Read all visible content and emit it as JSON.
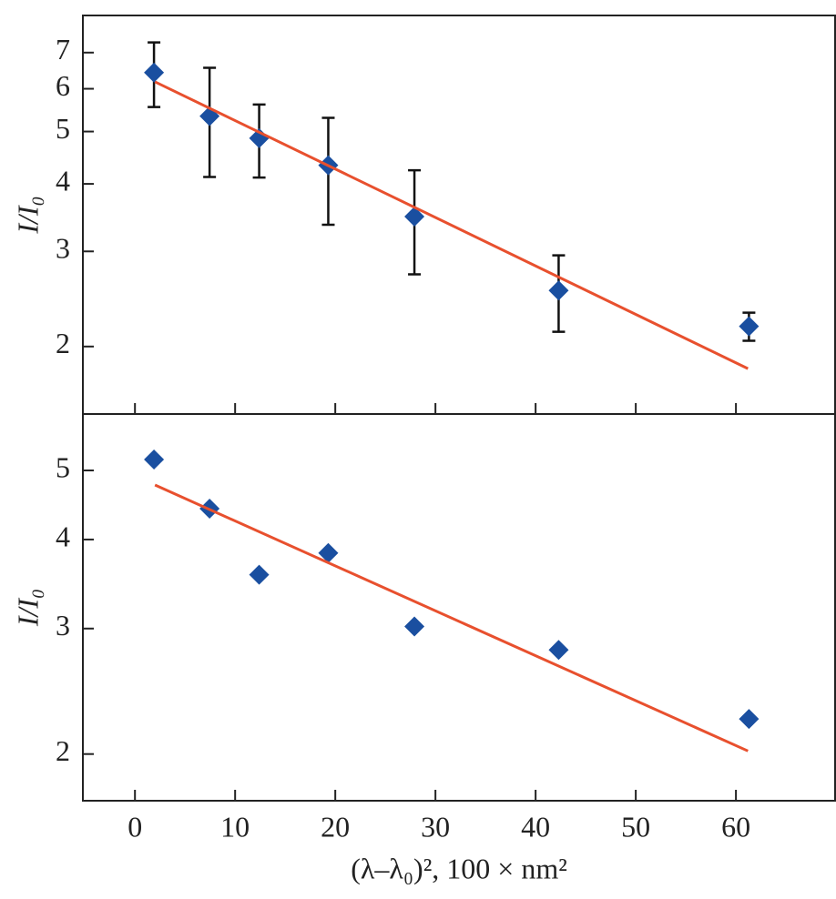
{
  "chart_data": [
    {
      "type": "scatter",
      "ylabel": "I/I₀",
      "log_y": true,
      "xlim": [
        -5.2,
        69.9
      ],
      "ylim": [
        1.5,
        8.2
      ],
      "yticks": [
        2,
        3,
        4,
        5,
        6,
        7
      ],
      "series": [
        {
          "type": "scatter",
          "color": "#1a4fa0",
          "x": [
            1.9,
            7.45,
            12.4,
            19.3,
            27.9,
            42.3,
            61.3
          ],
          "values": [
            6.43,
            5.34,
            4.86,
            4.33,
            3.48,
            2.54,
            2.18
          ],
          "errors": [
            0.88,
            1.22,
            0.75,
            0.97,
            0.76,
            0.41,
            0.13
          ]
        },
        {
          "type": "line",
          "color": "#e8502e",
          "x": [
            2,
            61.2
          ],
          "values": [
            6.18,
            1.82
          ]
        }
      ]
    },
    {
      "type": "scatter",
      "ylabel": "I/I₀",
      "xlabel": "(λ–λ₀)², 100 × nm²",
      "log_y": true,
      "xlim": [
        -5.2,
        69.9
      ],
      "ylim": [
        1.72,
        6.0
      ],
      "yticks": [
        2,
        3,
        4,
        5
      ],
      "xticks": [
        0,
        10,
        20,
        30,
        40,
        50,
        60
      ],
      "series": [
        {
          "type": "scatter",
          "color": "#1a4fa0",
          "x": [
            1.9,
            7.45,
            12.4,
            19.3,
            27.9,
            42.3,
            61.3
          ],
          "values": [
            5.18,
            4.42,
            3.57,
            3.83,
            3.02,
            2.8,
            2.24
          ]
        },
        {
          "type": "line",
          "color": "#e8502e",
          "x": [
            2,
            61.2
          ],
          "values": [
            4.77,
            2.02
          ]
        }
      ]
    }
  ]
}
